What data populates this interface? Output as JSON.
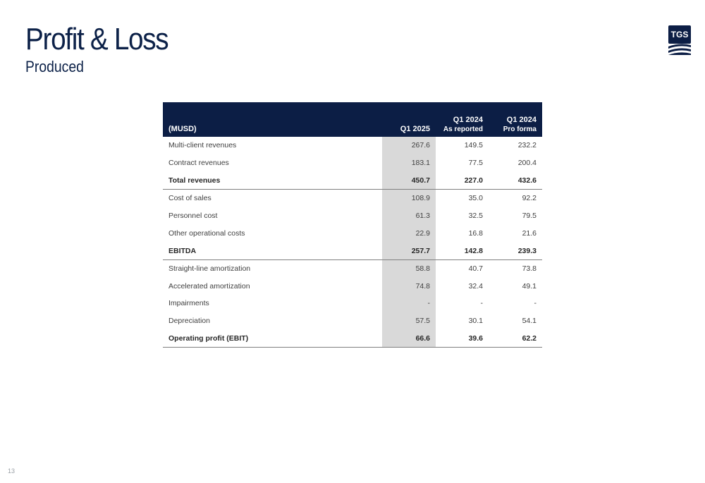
{
  "slide": {
    "title": "Profit & Loss",
    "subtitle": "Produced",
    "page_number": "13",
    "logo_text": "TGS",
    "brand_color": "#0c1e45",
    "highlight_color": "#d9d9d9"
  },
  "table": {
    "header": {
      "label": "(MUSD)",
      "columns": [
        {
          "title": "Q1 2025",
          "sub": ""
        },
        {
          "title": "Q1 2024",
          "sub": "As reported"
        },
        {
          "title": "Q1 2024",
          "sub": "Pro forma"
        }
      ]
    },
    "rows": [
      {
        "label": "Multi-client revenues",
        "values": [
          "267.6",
          "149.5",
          "232.2"
        ]
      },
      {
        "label": "Contract revenues",
        "values": [
          "183.1",
          "77.5",
          "200.4"
        ]
      },
      {
        "label": "Total revenues",
        "values": [
          "450.7",
          "227.0",
          "432.6"
        ]
      },
      {
        "label": "Cost of sales",
        "values": [
          "108.9",
          "35.0",
          "92.2"
        ]
      },
      {
        "label": "Personnel cost",
        "values": [
          "61.3",
          "32.5",
          "79.5"
        ]
      },
      {
        "label": "Other operational costs",
        "values": [
          "22.9",
          "16.8",
          "21.6"
        ]
      },
      {
        "label": "EBITDA",
        "values": [
          "257.7",
          "142.8",
          "239.3"
        ]
      },
      {
        "label": "Straight-line amortization",
        "values": [
          "58.8",
          "40.7",
          "73.8"
        ]
      },
      {
        "label": "Accelerated amortization",
        "values": [
          "74.8",
          "32.4",
          "49.1"
        ]
      },
      {
        "label": "Impairments",
        "values": [
          "-",
          "-",
          "-"
        ]
      },
      {
        "label": "Depreciation",
        "values": [
          "57.5",
          "30.1",
          "54.1"
        ]
      },
      {
        "label": "Operating profit (EBIT)",
        "values": [
          "66.6",
          "39.6",
          "62.2"
        ]
      }
    ]
  }
}
